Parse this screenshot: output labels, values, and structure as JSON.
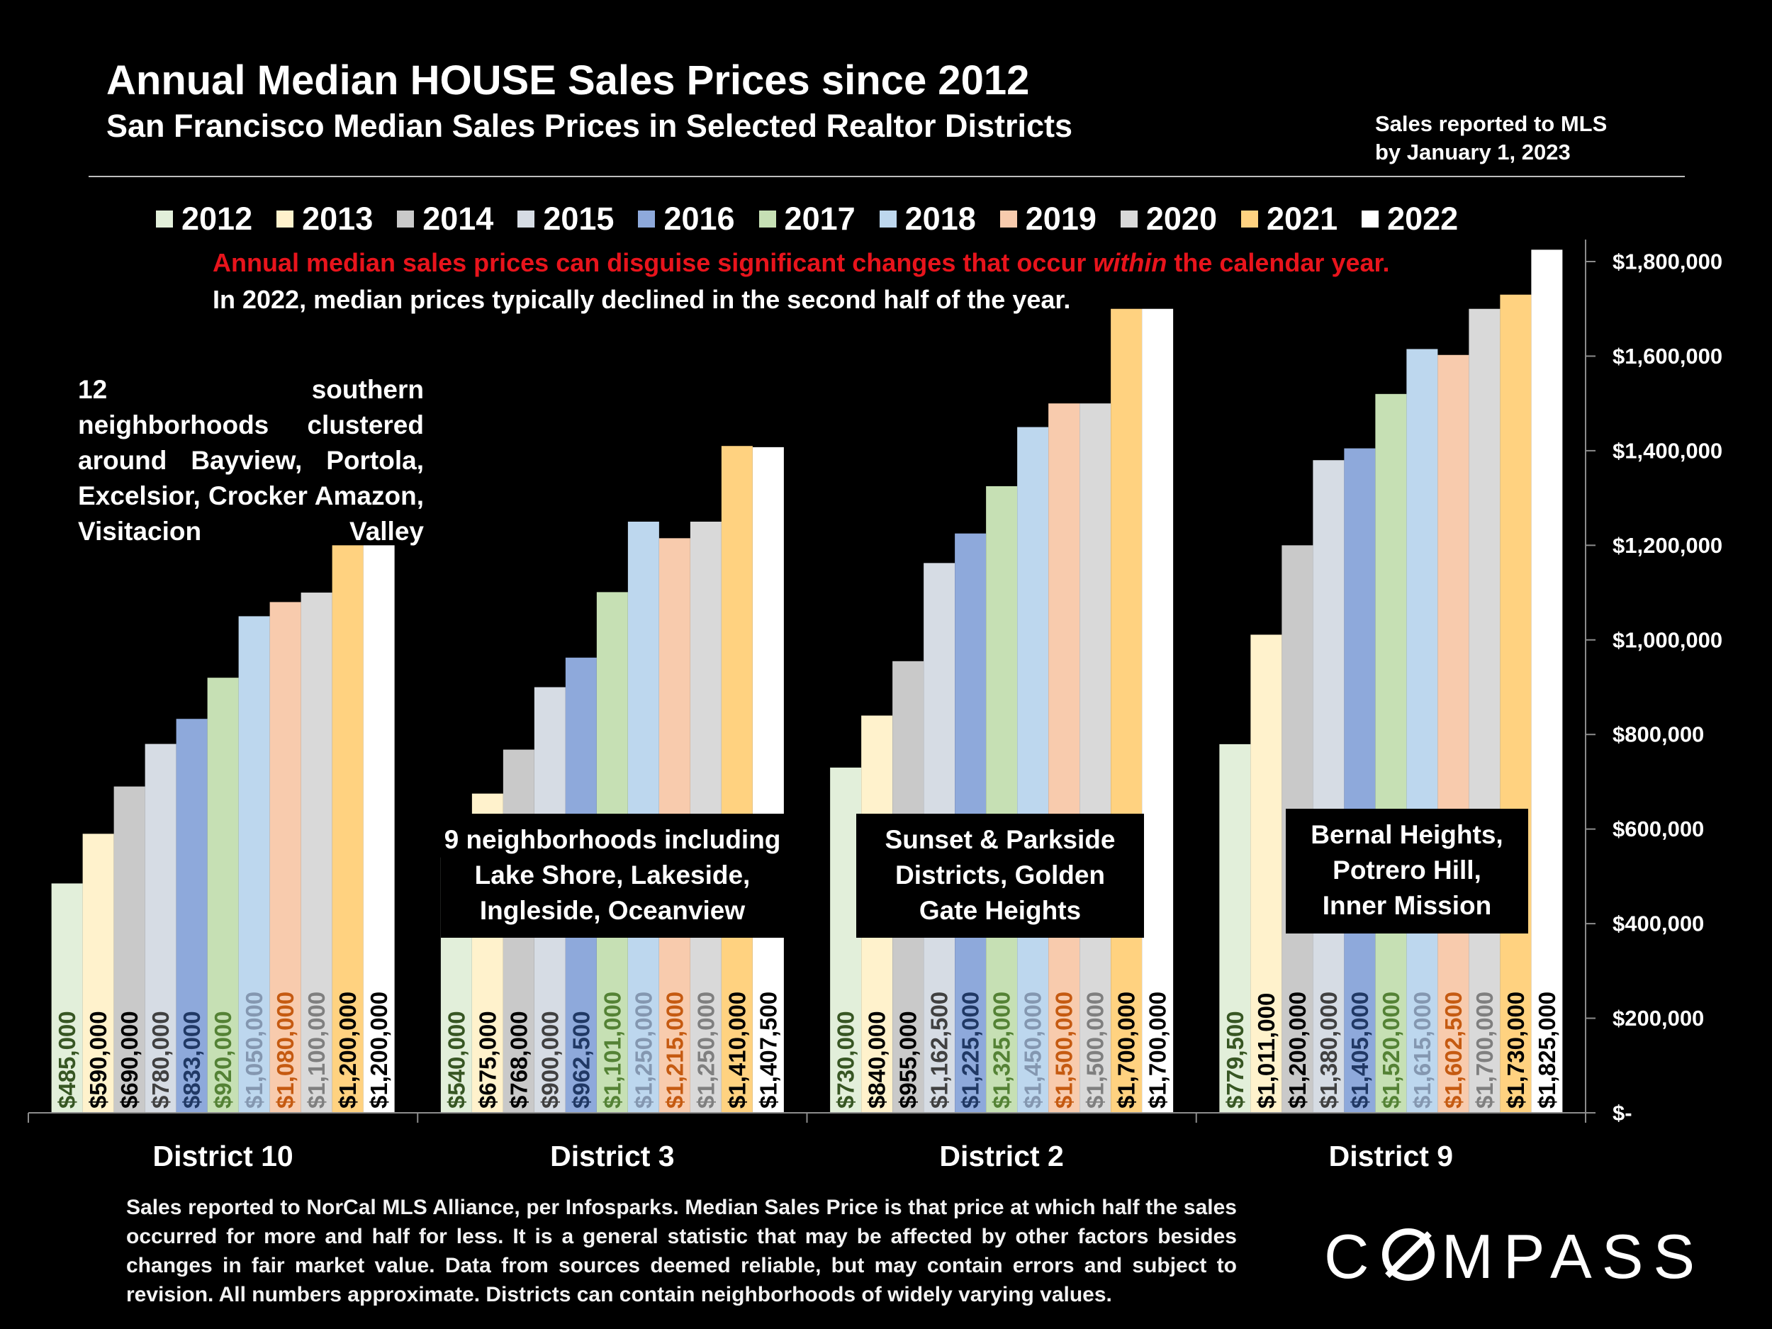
{
  "header": {
    "title": "Annual Median HOUSE Sales Prices since 2012",
    "subtitle": "San Francisco Median Sales Prices in Selected Realtor Districts",
    "note_line1": "Sales reported to MLS",
    "note_line2": "by January 1, 2023"
  },
  "notes": {
    "red_prefix": "Annual median sales prices can disguise significant changes that occur ",
    "red_italic": "within",
    "red_suffix": " the calendar year.",
    "white": "In 2022, median prices typically declined in the second half of the year."
  },
  "annotations": {
    "district10": "12 southern neighborhoods clustered around Bayview, Portola, Excelsior, Crocker Amazon, Visitacion Valley",
    "district3_line1": "9 neighborhoods including",
    "district3_line2": "Lake Shore, Lakeside,",
    "district3_line3": "Ingleside, Oceanview",
    "district2_line1": "Sunset & Parkside",
    "district2_line2": "Districts, Golden",
    "district2_line3": "Gate Heights",
    "district9_line1": "Bernal Heights,",
    "district9_line2": "Potrero Hill,",
    "district9_line3": "Inner Mission"
  },
  "footer": "Sales reported to NorCal MLS Alliance, per Infosparks. Median Sales Price is that price at which half the sales occurred for more and half for less. It is a general statistic that may be affected by other factors besides changes in fair market value. Data from sources deemed reliable, but may contain errors and subject to revision.  All numbers approximate. Districts can contain neighborhoods of widely varying values.",
  "logo": {
    "prefix": "C",
    "suffix": "MPASS"
  },
  "chart_data": {
    "type": "bar",
    "title": "Annual Median HOUSE Sales Prices since 2012",
    "categories": [
      "District 10",
      "District 3",
      "District 2",
      "District 9"
    ],
    "ylim": [
      0,
      1800000
    ],
    "y_ticks": [
      0,
      200000,
      400000,
      600000,
      800000,
      1000000,
      1200000,
      1400000,
      1600000,
      1800000
    ],
    "y_tick_labels": [
      "$-",
      "$200,000",
      "$400,000",
      "$600,000",
      "$800,000",
      "$1,000,000",
      "$1,200,000",
      "$1,400,000",
      "$1,600,000",
      "$1,800,000"
    ],
    "y_axis_position": "right",
    "grid": false,
    "legend_position": "top",
    "series": [
      {
        "name": "2012",
        "color": "#e2efda",
        "label_color": "#375623",
        "values": [
          485000,
          540000,
          730000,
          779500
        ],
        "labels": [
          "$485,000",
          "$540,000",
          "$730,000",
          "$779,500"
        ]
      },
      {
        "name": "2013",
        "color": "#fff2cc",
        "label_color": "#000000",
        "values": [
          590000,
          675000,
          840000,
          1011000
        ],
        "labels": [
          "$590,000",
          "$675,000",
          "$840,000",
          "$1,011,000"
        ]
      },
      {
        "name": "2014",
        "color": "#c9c9c9",
        "label_color": "#000000",
        "values": [
          690000,
          768000,
          955000,
          1200000
        ],
        "labels": [
          "$690,000",
          "$768,000",
          "$955,000",
          "$1,200,000"
        ]
      },
      {
        "name": "2015",
        "color": "#d6dce4",
        "label_color": "#404040",
        "values": [
          780000,
          900000,
          1162500,
          1380000
        ],
        "labels": [
          "$780,000",
          "$900,000",
          "$1,162,500",
          "$1,380,000"
        ]
      },
      {
        "name": "2016",
        "color": "#8ea9db",
        "label_color": "#203864",
        "values": [
          833000,
          962500,
          1225000,
          1405000
        ],
        "labels": [
          "$833,000",
          "$962,500",
          "$1,225,000",
          "$1,405,000"
        ]
      },
      {
        "name": "2017",
        "color": "#c6e0b4",
        "label_color": "#548235",
        "values": [
          920000,
          1101000,
          1325000,
          1520000
        ],
        "labels": [
          "$920,000",
          "$1,101,000",
          "$1,325,000",
          "$1,520,000"
        ]
      },
      {
        "name": "2018",
        "color": "#bdd7ee",
        "label_color": "#8497b0",
        "values": [
          1050000,
          1250000,
          1450000,
          1615000
        ],
        "labels": [
          "$1,050,000",
          "$1,250,000",
          "$1,450,000",
          "$1,615,000"
        ]
      },
      {
        "name": "2019",
        "color": "#f8cbad",
        "label_color": "#c55a11",
        "values": [
          1080000,
          1215000,
          1500000,
          1602500
        ],
        "labels": [
          "$1,080,000",
          "$1,215,000",
          "$1,500,000",
          "$1,602,500"
        ]
      },
      {
        "name": "2020",
        "color": "#d9d9d9",
        "label_color": "#7f7f7f",
        "values": [
          1100000,
          1250000,
          1500000,
          1700000
        ],
        "labels": [
          "$1,100,000",
          "$1,250,000",
          "$1,500,000",
          "$1,700,000"
        ]
      },
      {
        "name": "2021",
        "color": "#ffd280",
        "label_color": "#000000",
        "values": [
          1200000,
          1410000,
          1700000,
          1730000
        ],
        "labels": [
          "$1,200,000",
          "$1,410,000",
          "$1,700,000",
          "$1,730,000"
        ]
      },
      {
        "name": "2022",
        "color": "#ffffff",
        "label_color": "#000000",
        "values": [
          1200000,
          1407500,
          1700000,
          1825000
        ],
        "labels": [
          "$1,200,000",
          "$1,407,500",
          "$1,700,000",
          "$1,825,000"
        ]
      }
    ]
  }
}
